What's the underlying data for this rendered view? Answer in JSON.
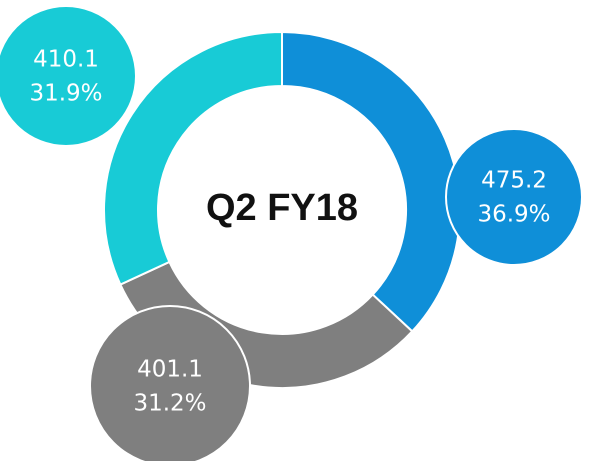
{
  "chart_data": {
    "type": "donut",
    "title": "Q2 FY18",
    "values": [
      475.2,
      401.1,
      410.1
    ],
    "percentages": [
      36.9,
      31.2,
      31.9
    ],
    "percentage_labels": [
      "36.9%",
      "31.2%",
      "31.9%"
    ],
    "colors": [
      "#0f8fd8",
      "#7f7f7f",
      "#18cbd6"
    ]
  }
}
